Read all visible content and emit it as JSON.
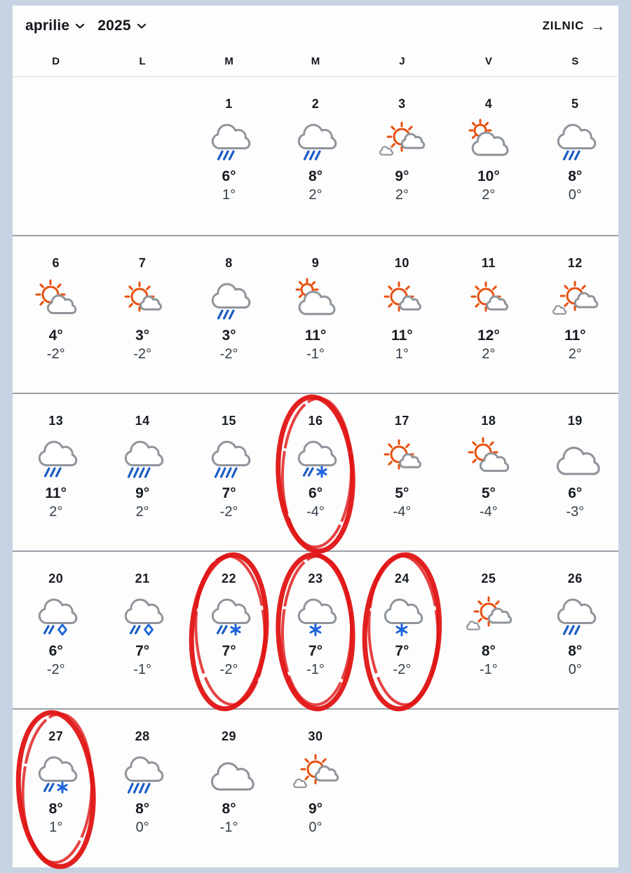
{
  "header": {
    "month": "aprilie",
    "year": "2025",
    "daily_link": "ZILNIC",
    "arrow_icon": "→"
  },
  "weekdays": [
    "D",
    "L",
    "M",
    "M",
    "J",
    "V",
    "S"
  ],
  "days": [
    null,
    null,
    {
      "num": "1",
      "icon": "rain",
      "high": "6°",
      "low": "1°",
      "circled": false
    },
    {
      "num": "2",
      "icon": "rain",
      "high": "8°",
      "low": "2°",
      "circled": false
    },
    {
      "num": "3",
      "icon": "sun-clouds",
      "high": "9°",
      "low": "2°",
      "circled": false
    },
    {
      "num": "4",
      "icon": "cloud-sun",
      "high": "10°",
      "low": "2°",
      "circled": false
    },
    {
      "num": "5",
      "icon": "rain",
      "high": "8°",
      "low": "0°",
      "circled": false
    },
    {
      "num": "6",
      "icon": "sun-big-cloud",
      "high": "4°",
      "low": "-2°",
      "circled": false
    },
    {
      "num": "7",
      "icon": "sun-small-cloud",
      "high": "3°",
      "low": "-2°",
      "circled": false
    },
    {
      "num": "8",
      "icon": "rain",
      "high": "3°",
      "low": "-2°",
      "circled": false
    },
    {
      "num": "9",
      "icon": "cloud-sun",
      "high": "11°",
      "low": "-1°",
      "circled": false
    },
    {
      "num": "10",
      "icon": "sun-small-cloud",
      "high": "11°",
      "low": "1°",
      "circled": false
    },
    {
      "num": "11",
      "icon": "sun-small-cloud",
      "high": "12°",
      "low": "2°",
      "circled": false
    },
    {
      "num": "12",
      "icon": "sun-clouds",
      "high": "11°",
      "low": "2°",
      "circled": false
    },
    {
      "num": "13",
      "icon": "rain",
      "high": "11°",
      "low": "2°",
      "circled": false
    },
    {
      "num": "14",
      "icon": "rain-heavy",
      "high": "9°",
      "low": "2°",
      "circled": false
    },
    {
      "num": "15",
      "icon": "rain-heavy",
      "high": "7°",
      "low": "-2°",
      "circled": false
    },
    {
      "num": "16",
      "icon": "rain-snow",
      "high": "6°",
      "low": "-4°",
      "circled": true
    },
    {
      "num": "17",
      "icon": "sun-small-cloud",
      "high": "5°",
      "low": "-4°",
      "circled": false
    },
    {
      "num": "18",
      "icon": "sun-big-cloud",
      "high": "5°",
      "low": "-4°",
      "circled": false
    },
    {
      "num": "19",
      "icon": "cloudy",
      "high": "6°",
      "low": "-3°",
      "circled": false
    },
    {
      "num": "20",
      "icon": "rain-ice",
      "high": "6°",
      "low": "-2°",
      "circled": false
    },
    {
      "num": "21",
      "icon": "rain-ice",
      "high": "7°",
      "low": "-1°",
      "circled": false
    },
    {
      "num": "22",
      "icon": "rain-snow",
      "high": "7°",
      "low": "-2°",
      "circled": true
    },
    {
      "num": "23",
      "icon": "snow",
      "high": "7°",
      "low": "-1°",
      "circled": true
    },
    {
      "num": "24",
      "icon": "snow",
      "high": "7°",
      "low": "-2°",
      "circled": true
    },
    {
      "num": "25",
      "icon": "sun-clouds",
      "high": "8°",
      "low": "-1°",
      "circled": false
    },
    {
      "num": "26",
      "icon": "rain",
      "high": "8°",
      "low": "0°",
      "circled": false
    },
    {
      "num": "27",
      "icon": "rain-snow",
      "high": "8°",
      "low": "1°",
      "circled": true
    },
    {
      "num": "28",
      "icon": "rain-heavy",
      "high": "8°",
      "low": "0°",
      "circled": false
    },
    {
      "num": "29",
      "icon": "cloudy",
      "high": "8°",
      "low": "-1°",
      "circled": false
    },
    {
      "num": "30",
      "icon": "sun-clouds",
      "high": "9°",
      "low": "0°",
      "circled": false
    },
    null,
    null,
    null
  ],
  "colors": {
    "sun": "#e8500f",
    "cloud": "#8f959b",
    "rain": "#1a5cc4",
    "snow": "#1d64dd",
    "annotation_circle": "#e01414",
    "page_margin": "#c6d3e2"
  }
}
